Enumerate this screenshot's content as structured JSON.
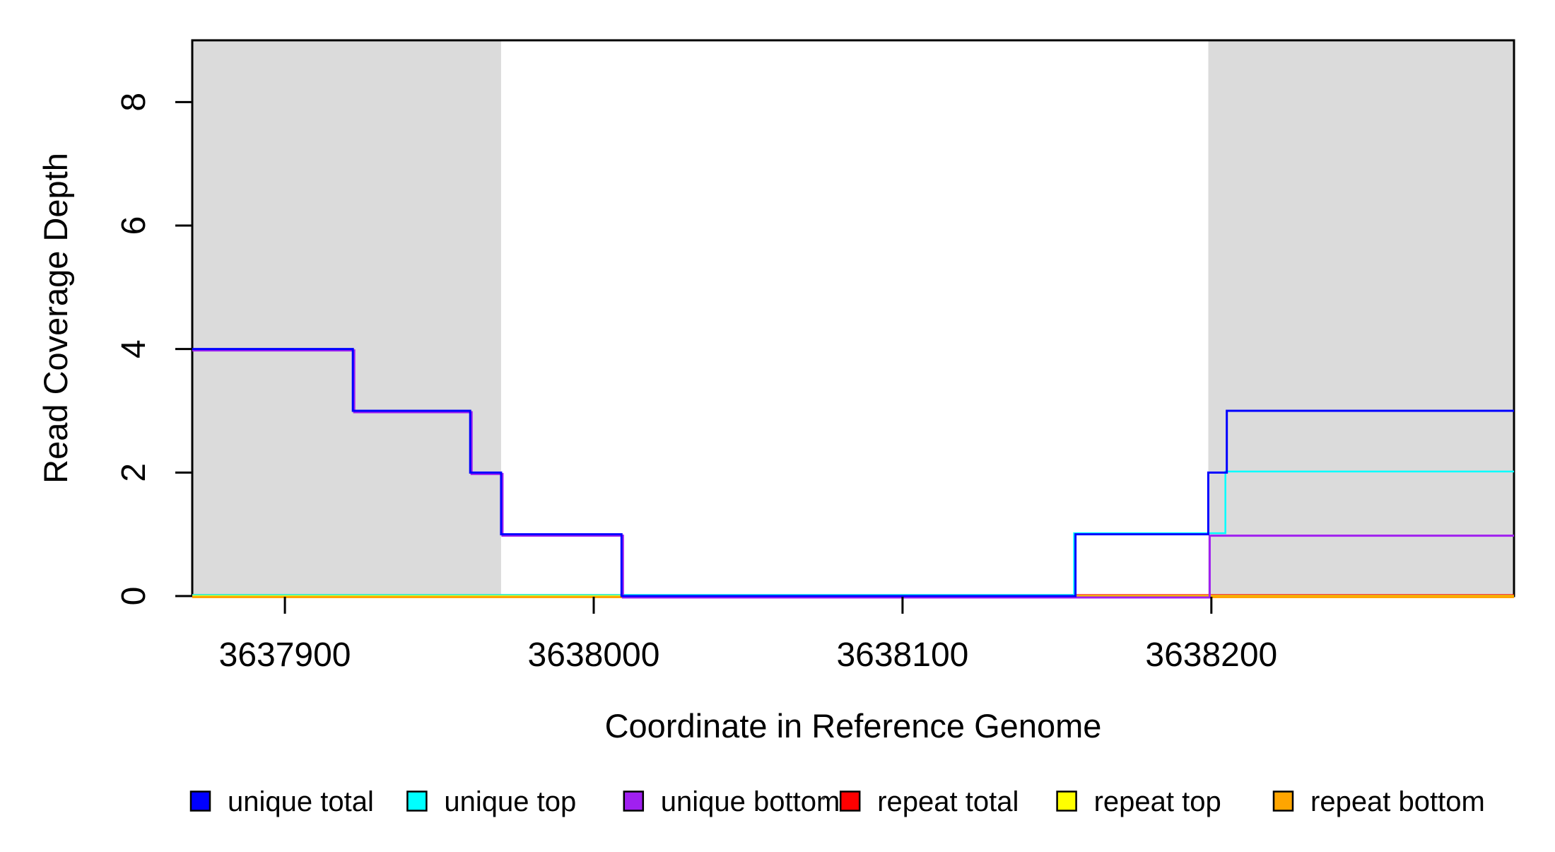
{
  "figure": {
    "background": "#ffffff"
  },
  "chart_data": {
    "type": "line",
    "subtype": "step-coverage",
    "title": "",
    "xlabel": "Coordinate in Reference Genome",
    "ylabel": "Read Coverage Depth",
    "xlim": [
      3637870,
      3638298
    ],
    "ylim": [
      0,
      9
    ],
    "grid": false,
    "x_ticks": [
      {
        "value": 3637900,
        "label": "3637900"
      },
      {
        "value": 3638000,
        "label": "3638000"
      },
      {
        "value": 3638100,
        "label": "3638100"
      },
      {
        "value": 3638200,
        "label": "3638200"
      }
    ],
    "y_ticks": [
      {
        "value": 0,
        "label": "0"
      },
      {
        "value": 2,
        "label": "2"
      },
      {
        "value": 4,
        "label": "4"
      },
      {
        "value": 6,
        "label": "6"
      },
      {
        "value": 8,
        "label": "8"
      }
    ],
    "shaded_regions": [
      {
        "x_start": 3637870,
        "x_end": 3637970,
        "color": "#dbdbdb"
      },
      {
        "x_start": 3638199,
        "x_end": 3638298,
        "color": "#dbdbdb"
      }
    ],
    "series": [
      {
        "name": "repeat total",
        "color": "#FF0000",
        "steps": [
          [
            3637870,
            0
          ]
        ]
      },
      {
        "name": "unique top",
        "color": "#00FFFF",
        "steps": [
          [
            3637870,
            0
          ],
          [
            3638156,
            1
          ],
          [
            3638205,
            2
          ]
        ]
      },
      {
        "name": "repeat top",
        "color": "#FFFF00",
        "steps": [
          [
            3637870,
            0
          ]
        ]
      },
      {
        "name": "repeat bottom",
        "color": "#FFA500",
        "steps": [
          [
            3637870,
            0
          ]
        ]
      },
      {
        "name": "unique bottom",
        "color": "#A020F0",
        "steps": [
          [
            3637870,
            4
          ],
          [
            3637922,
            3
          ],
          [
            3637960,
            2
          ],
          [
            3637970,
            1
          ],
          [
            3638009,
            0
          ],
          [
            3638199,
            1
          ]
        ]
      },
      {
        "name": "unique total",
        "color": "#0000FF",
        "steps": [
          [
            3637870,
            4
          ],
          [
            3637922,
            3
          ],
          [
            3637960,
            2
          ],
          [
            3637970,
            1
          ],
          [
            3638009,
            0
          ],
          [
            3638156,
            1
          ],
          [
            3638199,
            2
          ],
          [
            3638205,
            3
          ]
        ]
      }
    ],
    "legend": {
      "position": "bottom",
      "entries": [
        {
          "label": "unique total",
          "color": "#0000FF"
        },
        {
          "label": "unique top",
          "color": "#00FFFF"
        },
        {
          "label": "unique bottom",
          "color": "#A020F0"
        },
        {
          "label": "repeat total",
          "color": "#FF0000"
        },
        {
          "label": "repeat top",
          "color": "#FFFF00"
        },
        {
          "label": "repeat bottom",
          "color": "#FFA500"
        }
      ]
    },
    "artifact_dot": {
      "x": 1165,
      "y": 1129
    }
  }
}
